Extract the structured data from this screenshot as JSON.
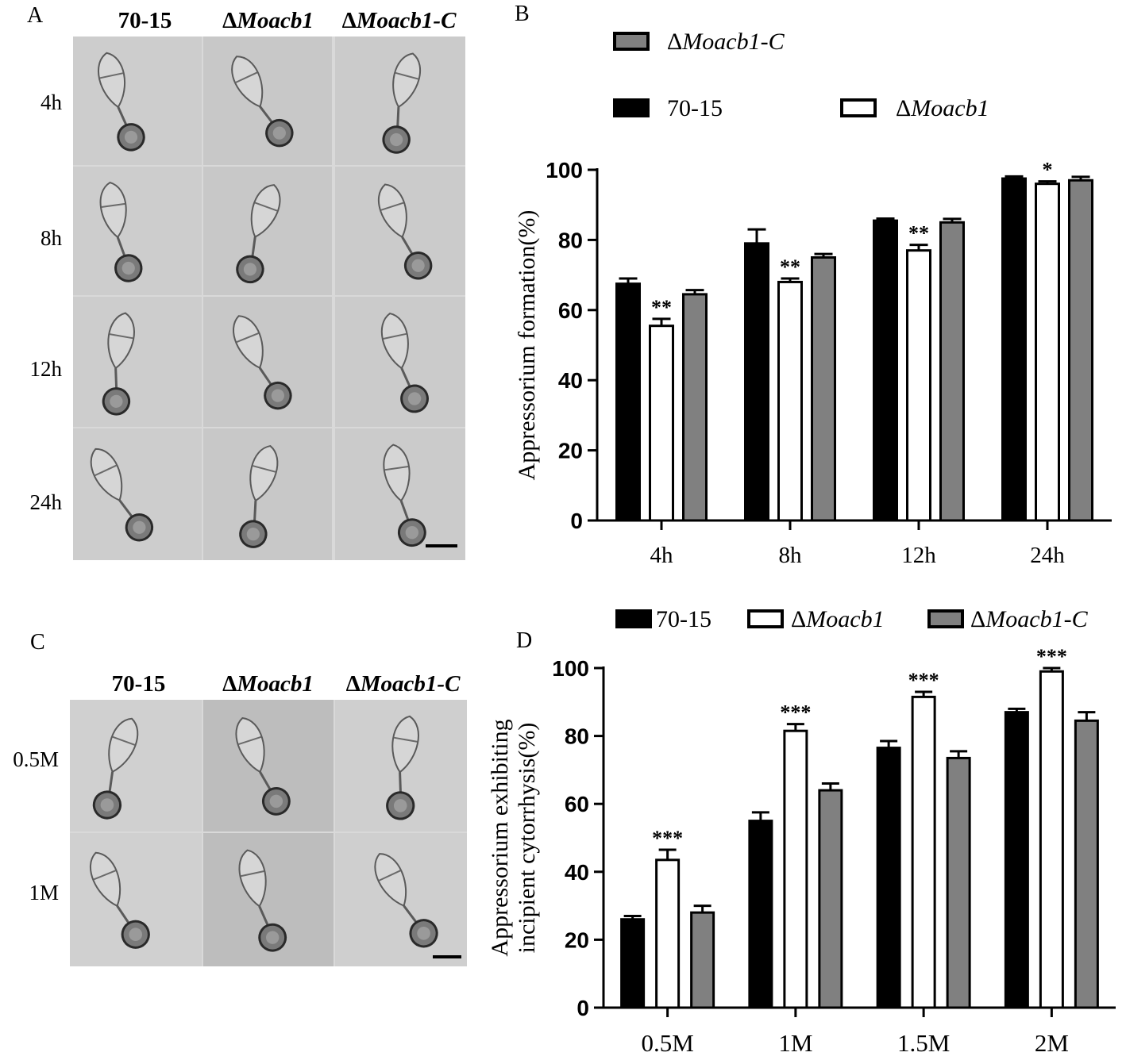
{
  "panelA": {
    "letter": "A",
    "columns": [
      {
        "prefix": "",
        "name": "70-15",
        "italic": false
      },
      {
        "prefix": "Δ",
        "name": "Moacb1",
        "italic": true
      },
      {
        "prefix": "Δ",
        "name": "Moacb1-C",
        "italic": true
      }
    ],
    "rows": [
      "4h",
      "8h",
      "12h",
      "24h"
    ]
  },
  "panelC": {
    "letter": "C",
    "columns": [
      {
        "prefix": "",
        "name": "70-15",
        "italic": false
      },
      {
        "prefix": "Δ",
        "name": "Moacb1",
        "italic": true
      },
      {
        "prefix": "Δ",
        "name": "Moacb1-C",
        "italic": true
      }
    ],
    "rows": [
      "0.5M",
      "1M"
    ]
  },
  "chart_data": [
    {
      "panel": "B",
      "type": "bar",
      "title": "",
      "xlabel": "",
      "ylabel": "Appressorium formation(%)",
      "ylim": [
        0,
        100
      ],
      "yticks": [
        0,
        20,
        40,
        60,
        80,
        100
      ],
      "categories": [
        "4h",
        "8h",
        "12h",
        "24h"
      ],
      "series": [
        {
          "name": "70-15",
          "color": "#000000",
          "values": [
            67.5,
            79,
            85.5,
            97.5
          ],
          "errors": [
            1.5,
            4,
            0.6,
            0.6
          ]
        },
        {
          "name": "ΔMoacb1",
          "color": "#ffffff",
          "values": [
            55.5,
            68,
            77,
            96
          ],
          "errors": [
            2,
            1,
            1.6,
            0.7
          ]
        },
        {
          "name": "ΔMoacb1-C",
          "color": "#808080",
          "values": [
            64.5,
            75,
            85,
            97
          ],
          "errors": [
            1.2,
            1,
            1,
            1
          ]
        }
      ],
      "significance": [
        [
          "",
          "**",
          "",
          ""
        ],
        [
          "",
          "**",
          "",
          ""
        ],
        [
          "",
          "**",
          "",
          ""
        ],
        [
          "",
          "*",
          "",
          ""
        ]
      ],
      "sig_by_category": [
        "**",
        "**",
        "**",
        "*"
      ],
      "legend": [
        "ΔMoacb1-C",
        "70-15",
        "ΔMoacb1"
      ],
      "legend_position": "top"
    },
    {
      "panel": "D",
      "type": "bar",
      "title": "",
      "xlabel": "",
      "ylabel_line1": "Appressorium exhibiting",
      "ylabel_line2": "incipient cytorrhysis(%)",
      "ylim": [
        0,
        100
      ],
      "yticks": [
        0,
        20,
        40,
        60,
        80,
        100
      ],
      "categories": [
        "0.5M",
        "1M",
        "1.5M",
        "2M"
      ],
      "series": [
        {
          "name": "70-15",
          "color": "#000000",
          "values": [
            26,
            55,
            76.5,
            87
          ],
          "errors": [
            1,
            2.5,
            2,
            1
          ]
        },
        {
          "name": "ΔMoacb1",
          "color": "#ffffff",
          "values": [
            43.5,
            81.5,
            91.5,
            99
          ],
          "errors": [
            3,
            2,
            1.5,
            1
          ]
        },
        {
          "name": "ΔMoacb1-C",
          "color": "#808080",
          "values": [
            28,
            64,
            73.5,
            84.5
          ],
          "errors": [
            2,
            2,
            2,
            2.5
          ]
        }
      ],
      "sig_by_category": [
        "***",
        "***",
        "***",
        "***"
      ],
      "legend": [
        "70-15",
        "ΔMoacb1",
        "ΔMoacb1-C"
      ],
      "legend_position": "top"
    }
  ]
}
